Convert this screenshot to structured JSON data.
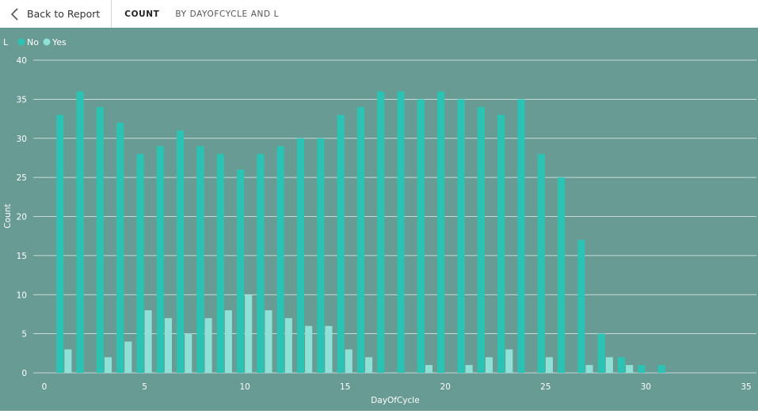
{
  "topbar": {
    "back_label": "Back to Report",
    "title": "COUNT",
    "subtitle": "BY DAYOFCYCLE AND L"
  },
  "colors": {
    "background": "#689b93",
    "no": "#2bc4b4",
    "yes": "#8fe0d6",
    "grid": "#ffffff",
    "text": "#ffffff"
  },
  "chart_data": {
    "type": "bar",
    "title": "COUNT BY DAYOFCYCLE AND L",
    "xlabel": "DayOfCycle",
    "ylabel": "Count",
    "legend_title": "L",
    "legend_position": "top-left",
    "xlim": [
      0,
      35
    ],
    "ylim": [
      0,
      40
    ],
    "x_ticks": [
      "0",
      "5",
      "10",
      "15",
      "20",
      "25",
      "30",
      "35"
    ],
    "y_ticks": [
      "0",
      "5",
      "10",
      "15",
      "20",
      "25",
      "30",
      "35",
      "40"
    ],
    "grid": true,
    "x": [
      1,
      2,
      3,
      4,
      5,
      6,
      7,
      8,
      9,
      10,
      11,
      12,
      13,
      14,
      15,
      16,
      17,
      18,
      19,
      20,
      21,
      22,
      23,
      24,
      25,
      26,
      27,
      28,
      29,
      30,
      31
    ],
    "series": [
      {
        "name": "No",
        "values": [
          33,
          36,
          34,
          32,
          28,
          29,
          31,
          29,
          28,
          26,
          28,
          29,
          30,
          30,
          33,
          34,
          36,
          36,
          35,
          36,
          35,
          34,
          33,
          35,
          28,
          25,
          17,
          5,
          2,
          1,
          1
        ]
      },
      {
        "name": "Yes",
        "values": [
          3,
          0,
          2,
          4,
          8,
          7,
          5,
          7,
          8,
          10,
          8,
          7,
          6,
          6,
          3,
          2,
          0,
          0,
          1,
          0,
          1,
          2,
          3,
          0,
          2,
          0,
          1,
          2,
          1,
          0,
          0
        ]
      }
    ]
  }
}
